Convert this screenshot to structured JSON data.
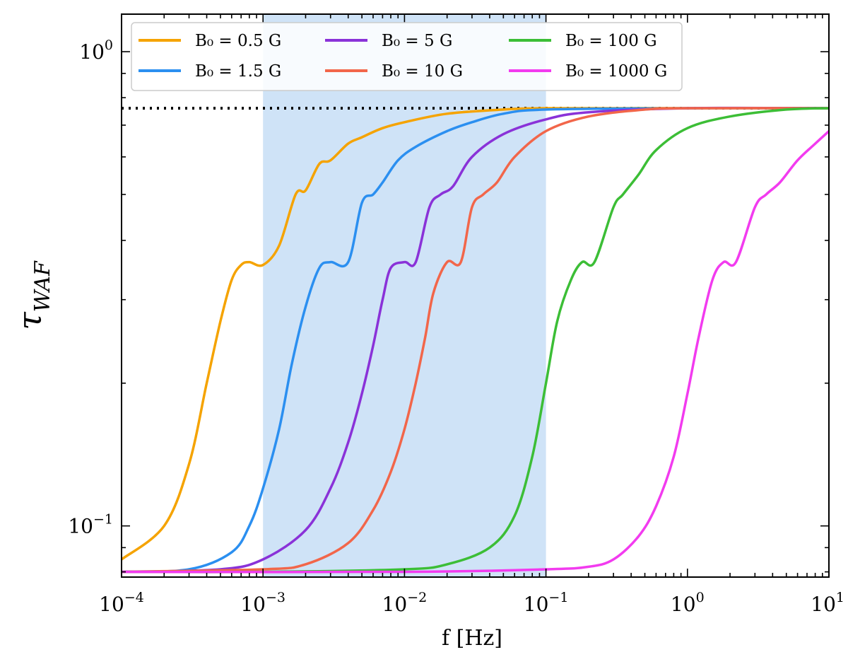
{
  "chart_data": {
    "type": "line",
    "xlabel": "f [Hz]",
    "ylabel": "τ",
    "ylabel_sub": "WAF",
    "xscale": "log",
    "yscale": "log",
    "xlim": [
      0.0001,
      10
    ],
    "ylim": [
      0.078,
      1.2
    ],
    "x_ticks": [
      {
        "value": 0.0001,
        "base": "10",
        "exp": "−4"
      },
      {
        "value": 0.001,
        "base": "10",
        "exp": "−3"
      },
      {
        "value": 0.01,
        "base": "10",
        "exp": "−2"
      },
      {
        "value": 0.1,
        "base": "10",
        "exp": "−1"
      },
      {
        "value": 1,
        "base": "10",
        "exp": "0"
      },
      {
        "value": 10,
        "base": "10",
        "exp": "1"
      }
    ],
    "y_ticks": [
      {
        "value": 0.1,
        "base": "10",
        "exp": "−1"
      },
      {
        "value": 1,
        "base": "10",
        "exp": "0"
      }
    ],
    "shaded_band": {
      "x0": 0.001,
      "x1": 0.1,
      "color": "#cfe3f7"
    },
    "reference_line": {
      "y": 0.76,
      "style": "dotted",
      "color": "#000000"
    },
    "legend": {
      "placement": "top-left",
      "columns": 3
    },
    "series": [
      {
        "name": "B₀ = 0.5 G",
        "color": "#f5a300",
        "x": [
          0.0001,
          0.0002,
          0.0003,
          0.0004,
          0.0005,
          0.0006,
          0.0007,
          0.0008,
          0.001,
          0.0013,
          0.0017,
          0.002,
          0.0025,
          0.003,
          0.004,
          0.005,
          0.007,
          0.01,
          0.02,
          0.05,
          0.1,
          1,
          10
        ],
        "y": [
          0.085,
          0.1,
          0.135,
          0.2,
          0.27,
          0.33,
          0.355,
          0.36,
          0.355,
          0.39,
          0.5,
          0.51,
          0.58,
          0.59,
          0.64,
          0.66,
          0.69,
          0.71,
          0.74,
          0.755,
          0.76,
          0.76,
          0.76
        ]
      },
      {
        "name": "B₀ = 1.5 G",
        "color": "#2b8ff0",
        "x": [
          0.0001,
          0.0003,
          0.0006,
          0.0008,
          0.001,
          0.0013,
          0.0016,
          0.002,
          0.0025,
          0.003,
          0.004,
          0.005,
          0.006,
          0.007,
          0.009,
          0.012,
          0.02,
          0.03,
          0.05,
          0.1,
          1,
          10
        ],
        "y": [
          0.08,
          0.081,
          0.088,
          0.1,
          0.12,
          0.16,
          0.22,
          0.29,
          0.35,
          0.36,
          0.36,
          0.48,
          0.5,
          0.53,
          0.59,
          0.63,
          0.68,
          0.71,
          0.74,
          0.755,
          0.76,
          0.76
        ]
      },
      {
        "name": "B₀ = 5 G",
        "color": "#8a32d8",
        "x": [
          0.0001,
          0.0005,
          0.001,
          0.002,
          0.003,
          0.004,
          0.005,
          0.006,
          0.007,
          0.008,
          0.01,
          0.012,
          0.015,
          0.018,
          0.022,
          0.03,
          0.05,
          0.1,
          0.2,
          1,
          10
        ],
        "y": [
          0.08,
          0.081,
          0.085,
          0.098,
          0.12,
          0.15,
          0.19,
          0.24,
          0.3,
          0.35,
          0.36,
          0.36,
          0.47,
          0.5,
          0.52,
          0.6,
          0.67,
          0.72,
          0.745,
          0.76,
          0.76
        ]
      },
      {
        "name": "B₀ = 10 G",
        "color": "#f2664a",
        "x": [
          0.0001,
          0.001,
          0.002,
          0.004,
          0.006,
          0.008,
          0.01,
          0.012,
          0.014,
          0.016,
          0.02,
          0.025,
          0.03,
          0.036,
          0.045,
          0.06,
          0.1,
          0.2,
          0.5,
          1,
          10
        ],
        "y": [
          0.08,
          0.081,
          0.083,
          0.092,
          0.108,
          0.13,
          0.16,
          0.2,
          0.25,
          0.31,
          0.36,
          0.36,
          0.47,
          0.5,
          0.53,
          0.6,
          0.68,
          0.73,
          0.755,
          0.76,
          0.76
        ]
      },
      {
        "name": "B₀ = 100 G",
        "color": "#3cbe36",
        "x": [
          0.0001,
          0.001,
          0.01,
          0.02,
          0.04,
          0.06,
          0.08,
          0.1,
          0.12,
          0.15,
          0.18,
          0.22,
          0.3,
          0.35,
          0.45,
          0.6,
          1,
          2,
          5,
          10
        ],
        "y": [
          0.08,
          0.08,
          0.081,
          0.083,
          0.09,
          0.105,
          0.14,
          0.2,
          0.27,
          0.33,
          0.36,
          0.36,
          0.47,
          0.5,
          0.55,
          0.62,
          0.69,
          0.73,
          0.755,
          0.76
        ]
      },
      {
        "name": "B₀ = 1000 G",
        "color": "#f23bef",
        "x": [
          0.0001,
          0.01,
          0.1,
          0.2,
          0.3,
          0.45,
          0.6,
          0.8,
          1,
          1.2,
          1.5,
          1.8,
          2.2,
          3,
          3.6,
          4.5,
          6,
          8,
          10
        ],
        "y": [
          0.08,
          0.08,
          0.081,
          0.082,
          0.085,
          0.095,
          0.11,
          0.14,
          0.19,
          0.25,
          0.33,
          0.36,
          0.36,
          0.47,
          0.5,
          0.53,
          0.59,
          0.64,
          0.68
        ]
      }
    ]
  }
}
